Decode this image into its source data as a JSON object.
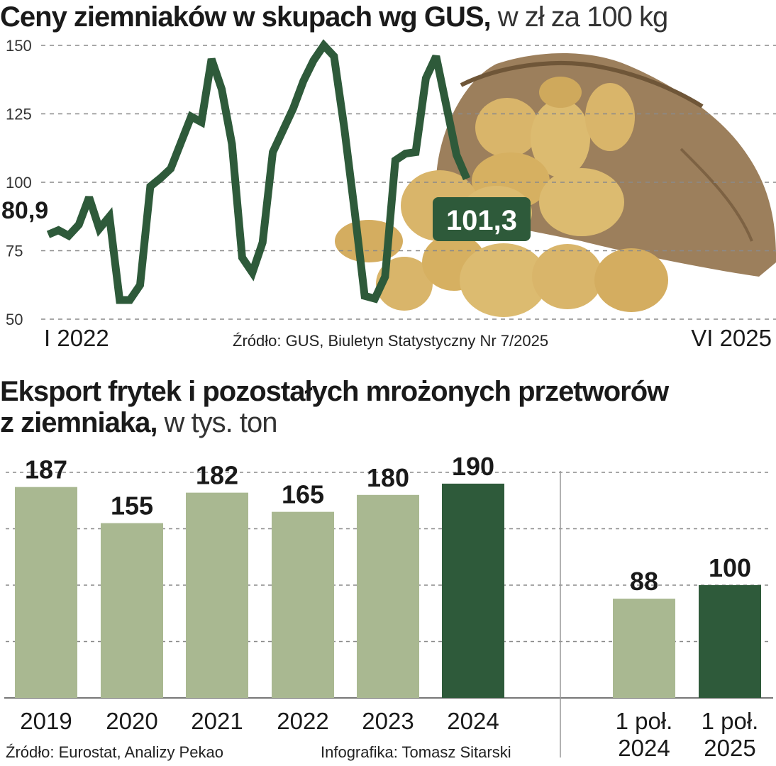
{
  "title1": {
    "bold": "Ceny ziemniaków w skupach wg GUS,",
    "unit": " w zł za 100 kg"
  },
  "title2": {
    "bold_line1": "Eksport frytek i pozostałych mrożonych przetworów",
    "bold_line2": "z ziemniaka,",
    "unit": " w tys. ton"
  },
  "source1": "Źródło: GUS, Biuletyn Statystyczny Nr 7/2025",
  "source2": "Źródło: Eurostat, Analizy Pekao",
  "credit": "Infografika: Tomasz Sitarski",
  "colors": {
    "line": "#2e5a3a",
    "bar_light": "#a9b891",
    "bar_dark": "#2e5a3a",
    "grid": "#8a8a8a",
    "label_box": "#2e5a3a",
    "potato": "#d9b56a",
    "sack": "#9c7f5c"
  },
  "illustration": "potato-sack-image",
  "chart_data": [
    {
      "type": "line",
      "title": "Ceny ziemniaków w skupach wg GUS",
      "ylabel": "w zł za 100 kg",
      "ylim": [
        50,
        150
      ],
      "yticks": [
        50,
        75,
        100,
        125,
        150
      ],
      "x_start_label": "I 2022",
      "x_end_label": "VI 2025",
      "start_value_label": "80,9",
      "end_value_label": "101,3",
      "grid": true,
      "values": [
        80.9,
        82.5,
        80.5,
        84.5,
        94.5,
        83,
        87.5,
        57,
        57,
        62.5,
        98.5,
        101.5,
        105,
        114.5,
        124,
        122,
        145,
        134,
        114,
        72.5,
        67,
        78,
        111,
        119,
        127,
        137,
        144.5,
        150,
        146,
        120,
        90,
        58.5,
        57.5,
        65.5,
        108,
        110.5,
        111,
        138,
        146,
        128,
        110,
        101.3
      ]
    },
    {
      "type": "bar",
      "title": "Eksport frytek i pozostałych mrożonych przetworów z ziemniaka",
      "ylabel": "w tys. ton",
      "ylim": [
        0,
        200
      ],
      "grid": true,
      "categories": [
        "2019",
        "2020",
        "2021",
        "2022",
        "2023",
        "2024"
      ],
      "values": [
        187,
        155,
        182,
        165,
        180,
        190
      ],
      "highlight": "2024"
    },
    {
      "type": "bar",
      "ylim": [
        0,
        200
      ],
      "categories": [
        "1 poł. 2024",
        "1 poł. 2025"
      ],
      "category_lines": [
        [
          "1 poł.",
          "2024"
        ],
        [
          "1 poł.",
          "2025"
        ]
      ],
      "values": [
        88,
        100
      ],
      "highlight": "1 poł. 2025"
    }
  ]
}
